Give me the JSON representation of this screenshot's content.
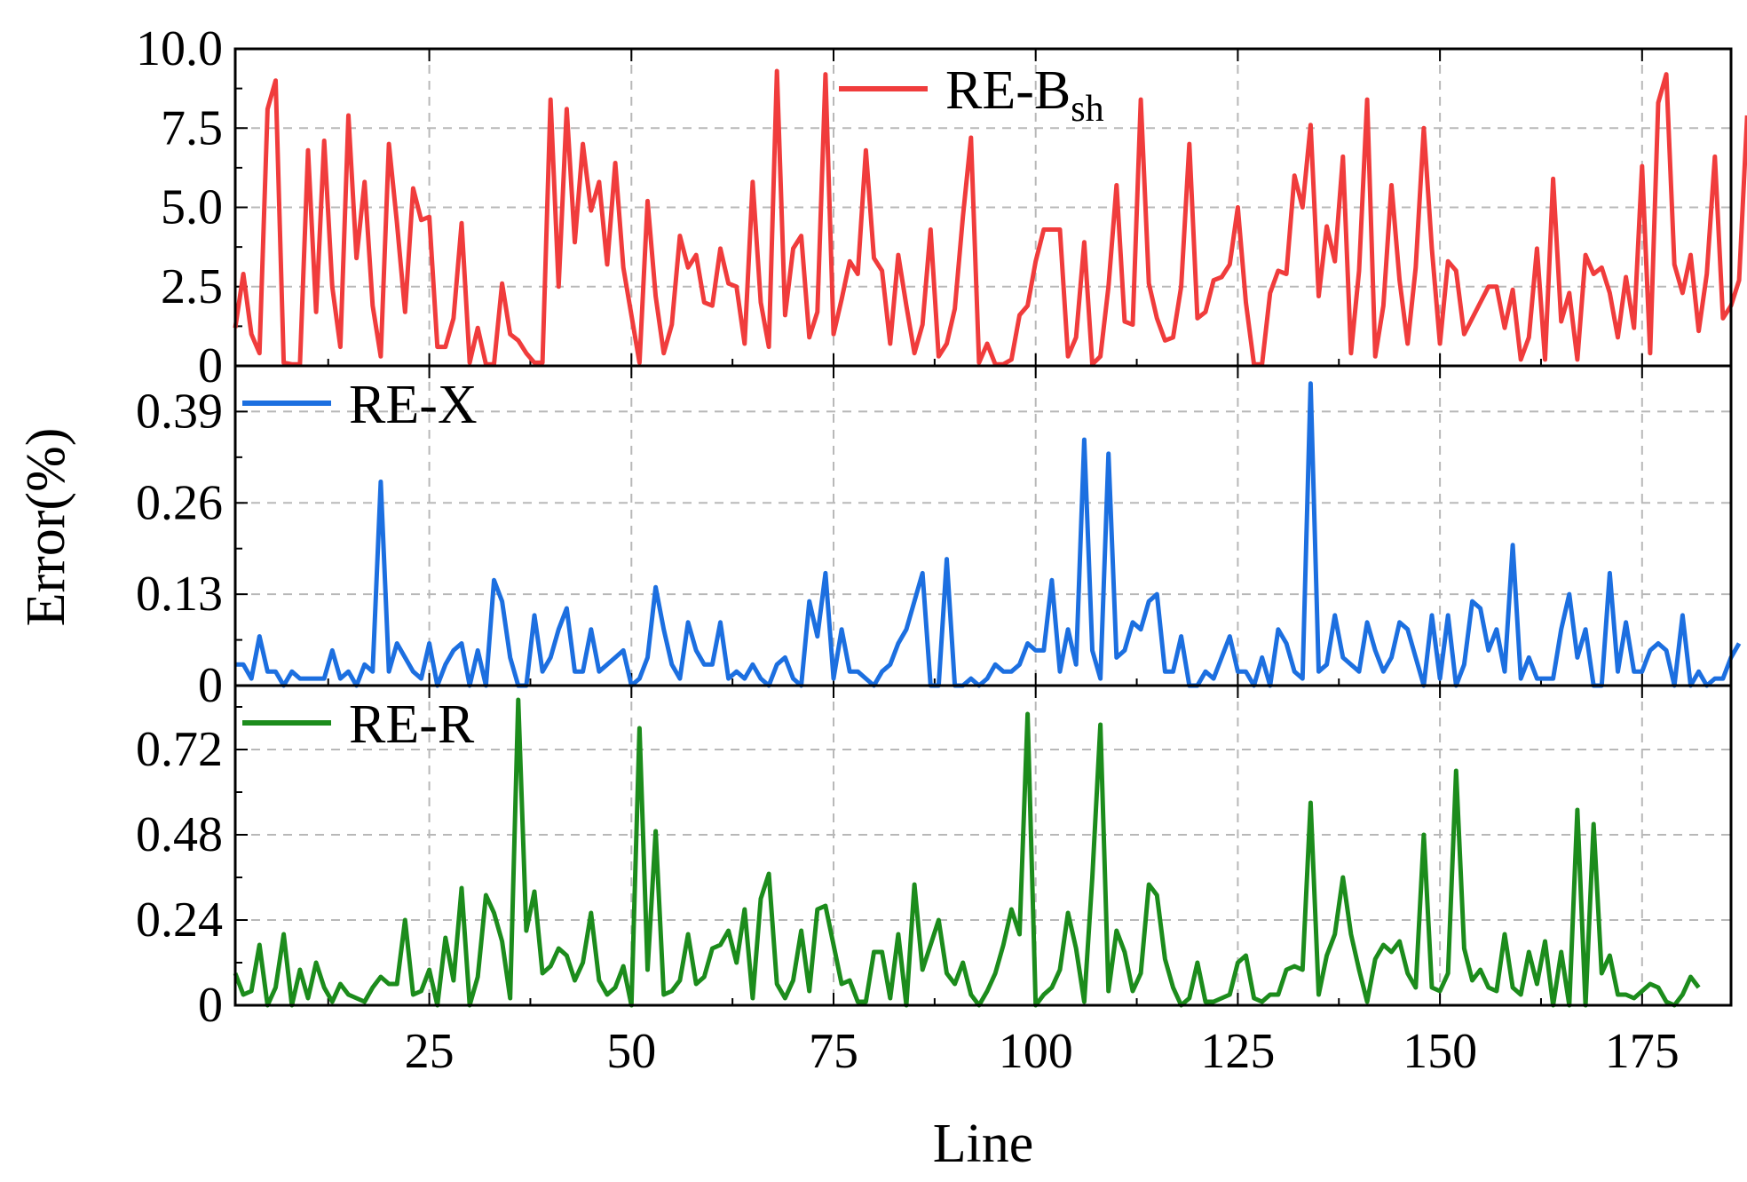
{
  "chart_data": {
    "type": "line",
    "xlabel": "Line",
    "ylabel": "Error(%)",
    "xlim": [
      1,
      186
    ],
    "xticks": [
      25,
      50,
      75,
      100,
      125,
      150,
      175
    ],
    "x_tick_labels": [
      "25",
      "50",
      "75",
      "100",
      "125",
      "150",
      "175"
    ],
    "grid": true,
    "panels": [
      {
        "legend": {
          "prefix": "RE-B",
          "sub": "sh",
          "position": "top-center"
        },
        "color": "#f03c3c",
        "ylim": [
          0,
          10
        ],
        "yticks": [
          0,
          2.5,
          5,
          7.5,
          10
        ],
        "y_tick_labels": [
          "0",
          "2.5",
          "5.0",
          "7.5",
          "10.0"
        ],
        "values": [
          1.2,
          2.9,
          1.0,
          0.4,
          8.1,
          9.0,
          0.1,
          0.05,
          0.05,
          6.8,
          1.7,
          7.1,
          2.5,
          0.6,
          7.9,
          3.4,
          5.8,
          1.9,
          0.3,
          7.0,
          4.5,
          1.7,
          5.6,
          4.6,
          4.7,
          0.6,
          0.6,
          1.5,
          4.5,
          0.1,
          1.2,
          0.05,
          0.05,
          2.6,
          1.0,
          0.8,
          0.4,
          0.1,
          0.1,
          8.4,
          2.5,
          8.1,
          3.9,
          7.0,
          4.9,
          5.8,
          3.2,
          6.4,
          3.1,
          1.6,
          0.1,
          5.2,
          2.2,
          0.4,
          1.3,
          4.1,
          3.1,
          3.5,
          2.0,
          1.9,
          3.7,
          2.6,
          2.5,
          0.7,
          5.8,
          2.0,
          0.6,
          9.3,
          1.6,
          3.7,
          4.1,
          0.9,
          1.7,
          9.2,
          1.0,
          2.1,
          3.3,
          2.9,
          6.8,
          3.4,
          3.0,
          0.7,
          3.5,
          1.9,
          0.4,
          1.3,
          4.3,
          0.3,
          0.7,
          1.8,
          4.7,
          7.2,
          0.1,
          0.7,
          0.05,
          0.05,
          0.2,
          1.6,
          1.9,
          3.3,
          4.3,
          4.3,
          4.3,
          0.3,
          0.9,
          3.9,
          0.05,
          0.3,
          2.5,
          5.7,
          1.4,
          1.3,
          8.4,
          2.6,
          1.5,
          0.8,
          0.9,
          2.5,
          7.0,
          1.5,
          1.7,
          2.7,
          2.8,
          3.2,
          5.0,
          2.0,
          0.05,
          0.05,
          2.3,
          3.0,
          2.9,
          6.0,
          5.0,
          7.6,
          2.2,
          4.4,
          3.3,
          6.6,
          0.4,
          3.0,
          8.4,
          0.3,
          1.9,
          5.7,
          2.7,
          0.7,
          3.1,
          7.5,
          3.7,
          0.7,
          3.3,
          3.0,
          1.0,
          1.5,
          2.0,
          2.5,
          2.5,
          1.2,
          2.4,
          0.2,
          0.9,
          3.7,
          0.2,
          5.9,
          1.4,
          2.3,
          0.2,
          3.5,
          2.9,
          3.1,
          2.3,
          0.9,
          2.8,
          1.2,
          6.3,
          0.4,
          8.3,
          9.2,
          3.2,
          2.3,
          3.5,
          1.1,
          2.9,
          6.6,
          1.5,
          1.9,
          2.7,
          7.9
        ]
      },
      {
        "legend": {
          "prefix": "RE-X",
          "sub": "",
          "position": "top-left"
        },
        "color": "#1c6fe0",
        "ylim": [
          0,
          0.455
        ],
        "yticks": [
          0,
          0.13,
          0.26,
          0.39
        ],
        "y_tick_labels": [
          "0",
          "0.13",
          "0.26",
          "0.39"
        ],
        "values": [
          0.03,
          0.03,
          0.01,
          0.07,
          0.02,
          0.02,
          0.0,
          0.02,
          0.01,
          0.01,
          0.01,
          0.01,
          0.05,
          0.01,
          0.02,
          0.0,
          0.03,
          0.02,
          0.29,
          0.02,
          0.06,
          0.04,
          0.02,
          0.01,
          0.06,
          0.0,
          0.03,
          0.05,
          0.06,
          0.0,
          0.05,
          0.0,
          0.15,
          0.12,
          0.04,
          0.0,
          0.0,
          0.1,
          0.02,
          0.04,
          0.08,
          0.11,
          0.02,
          0.02,
          0.08,
          0.02,
          0.03,
          0.04,
          0.05,
          0.0,
          0.01,
          0.04,
          0.14,
          0.08,
          0.03,
          0.01,
          0.09,
          0.05,
          0.03,
          0.03,
          0.09,
          0.01,
          0.02,
          0.01,
          0.03,
          0.01,
          0.0,
          0.03,
          0.04,
          0.01,
          0.0,
          0.12,
          0.07,
          0.16,
          0.01,
          0.08,
          0.02,
          0.02,
          0.01,
          0.0,
          0.02,
          0.03,
          0.06,
          0.08,
          0.12,
          0.16,
          0.0,
          0.0,
          0.18,
          0.0,
          0.0,
          0.01,
          0.0,
          0.01,
          0.03,
          0.02,
          0.02,
          0.03,
          0.06,
          0.05,
          0.05,
          0.15,
          0.02,
          0.08,
          0.03,
          0.35,
          0.05,
          0.01,
          0.33,
          0.04,
          0.05,
          0.09,
          0.08,
          0.12,
          0.13,
          0.02,
          0.02,
          0.07,
          0.0,
          0.0,
          0.02,
          0.01,
          0.04,
          0.07,
          0.02,
          0.02,
          0.0,
          0.04,
          0.0,
          0.08,
          0.06,
          0.02,
          0.01,
          0.43,
          0.02,
          0.03,
          0.1,
          0.04,
          0.03,
          0.02,
          0.09,
          0.05,
          0.02,
          0.04,
          0.09,
          0.08,
          0.04,
          0.0,
          0.1,
          0.01,
          0.1,
          0.0,
          0.03,
          0.12,
          0.11,
          0.05,
          0.08,
          0.02,
          0.2,
          0.01,
          0.04,
          0.01,
          0.01,
          0.01,
          0.08,
          0.13,
          0.04,
          0.08,
          0.0,
          0.0,
          0.16,
          0.02,
          0.09,
          0.02,
          0.02,
          0.05,
          0.06,
          0.05,
          0.0,
          0.1,
          0.0,
          0.02,
          0.0,
          0.01,
          0.01,
          0.04,
          0.06
        ]
      },
      {
        "legend": {
          "prefix": "RE-R",
          "sub": "",
          "position": "top-left"
        },
        "color": "#1c8c1c",
        "ylim": [
          0,
          0.9
        ],
        "yticks": [
          0,
          0.24,
          0.48,
          0.72
        ],
        "y_tick_labels": [
          "0",
          "0.24",
          "0.48",
          "0.72"
        ],
        "values": [
          0.09,
          0.03,
          0.04,
          0.17,
          0.0,
          0.05,
          0.2,
          0.0,
          0.1,
          0.02,
          0.12,
          0.05,
          0.01,
          0.06,
          0.03,
          0.02,
          0.01,
          0.05,
          0.08,
          0.06,
          0.06,
          0.24,
          0.03,
          0.04,
          0.1,
          0.0,
          0.19,
          0.07,
          0.33,
          0.0,
          0.08,
          0.31,
          0.26,
          0.18,
          0.02,
          0.86,
          0.21,
          0.32,
          0.09,
          0.11,
          0.16,
          0.14,
          0.07,
          0.12,
          0.26,
          0.07,
          0.03,
          0.05,
          0.11,
          0.0,
          0.78,
          0.1,
          0.49,
          0.03,
          0.04,
          0.07,
          0.2,
          0.06,
          0.08,
          0.16,
          0.17,
          0.21,
          0.12,
          0.27,
          0.02,
          0.3,
          0.37,
          0.06,
          0.02,
          0.07,
          0.21,
          0.04,
          0.27,
          0.28,
          0.17,
          0.06,
          0.07,
          0.01,
          0.01,
          0.15,
          0.15,
          0.02,
          0.2,
          0.0,
          0.34,
          0.1,
          0.17,
          0.24,
          0.09,
          0.06,
          0.12,
          0.03,
          0.0,
          0.04,
          0.09,
          0.17,
          0.27,
          0.2,
          0.82,
          0.0,
          0.03,
          0.05,
          0.1,
          0.26,
          0.16,
          0.01,
          0.36,
          0.79,
          0.04,
          0.21,
          0.15,
          0.04,
          0.09,
          0.34,
          0.31,
          0.13,
          0.05,
          0.0,
          0.02,
          0.12,
          0.01,
          0.01,
          0.02,
          0.03,
          0.12,
          0.14,
          0.02,
          0.01,
          0.03,
          0.03,
          0.1,
          0.11,
          0.1,
          0.57,
          0.03,
          0.14,
          0.2,
          0.36,
          0.2,
          0.1,
          0.01,
          0.13,
          0.17,
          0.15,
          0.18,
          0.09,
          0.05,
          0.48,
          0.05,
          0.04,
          0.09,
          0.66,
          0.16,
          0.07,
          0.1,
          0.05,
          0.04,
          0.2,
          0.05,
          0.03,
          0.15,
          0.06,
          0.18,
          0.0,
          0.15,
          0.0,
          0.55,
          0.0,
          0.51,
          0.09,
          0.14,
          0.03,
          0.03,
          0.02,
          0.04,
          0.06,
          0.05,
          0.01,
          0.0,
          0.03,
          0.08,
          0.05
        ]
      }
    ]
  }
}
